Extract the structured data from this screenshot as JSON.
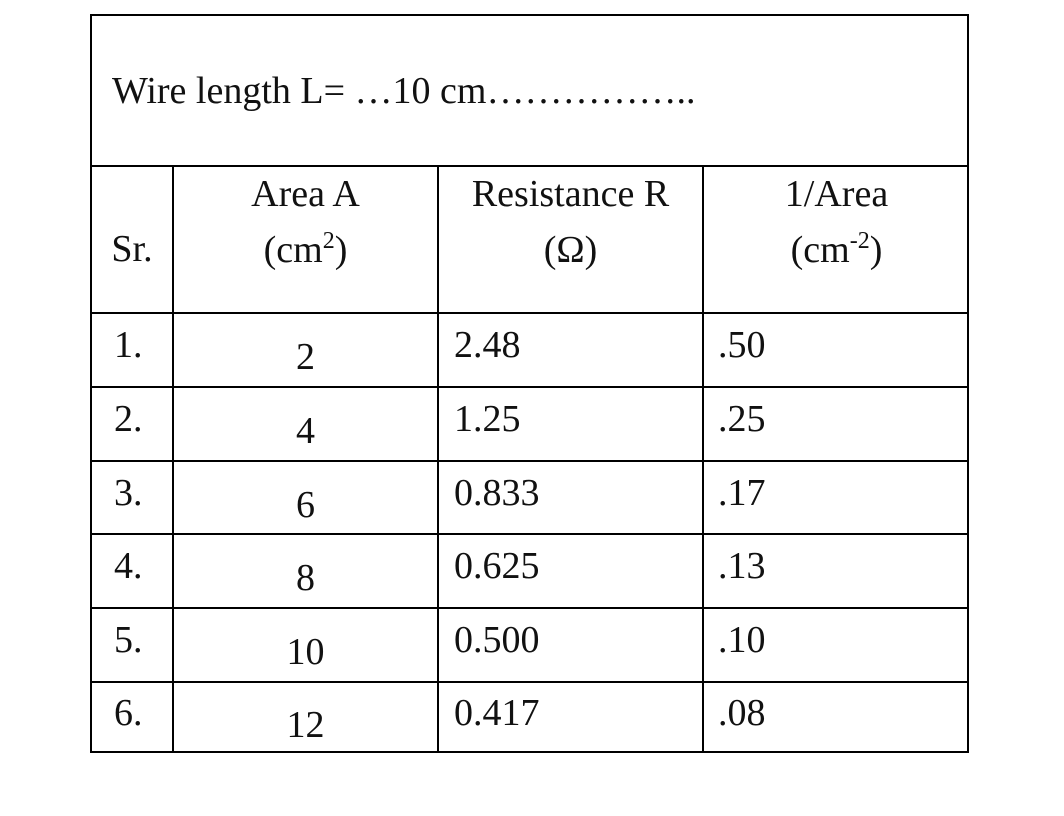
{
  "title": "Wire length L= …10 cm……………..",
  "headers": {
    "sr": "Sr.",
    "area_line1": "Area A",
    "area_line2_base": "(cm",
    "area_line2_exp": "2",
    "area_line2_close": ")",
    "resistance_line1": "Resistance R",
    "resistance_line2": "(Ω)",
    "inv_line1": "1/Area",
    "inv_line2_base": "(cm",
    "inv_line2_exp": "-2",
    "inv_line2_close": ")"
  },
  "rows": [
    {
      "sr": "1.",
      "area": "2",
      "resistance": "2.48",
      "inv_area": ".50"
    },
    {
      "sr": "2.",
      "area": "4",
      "resistance": "1.25",
      "inv_area": ".25"
    },
    {
      "sr": "3.",
      "area": "6",
      "resistance": "0.833",
      "inv_area": ".17"
    },
    {
      "sr": "4.",
      "area": "8",
      "resistance": "0.625",
      "inv_area": ".13"
    },
    {
      "sr": "5.",
      "area": "10",
      "resistance": "0.500",
      "inv_area": ".10"
    },
    {
      "sr": "6.",
      "area": "12",
      "resistance": "0.417",
      "inv_area": ".08"
    }
  ]
}
